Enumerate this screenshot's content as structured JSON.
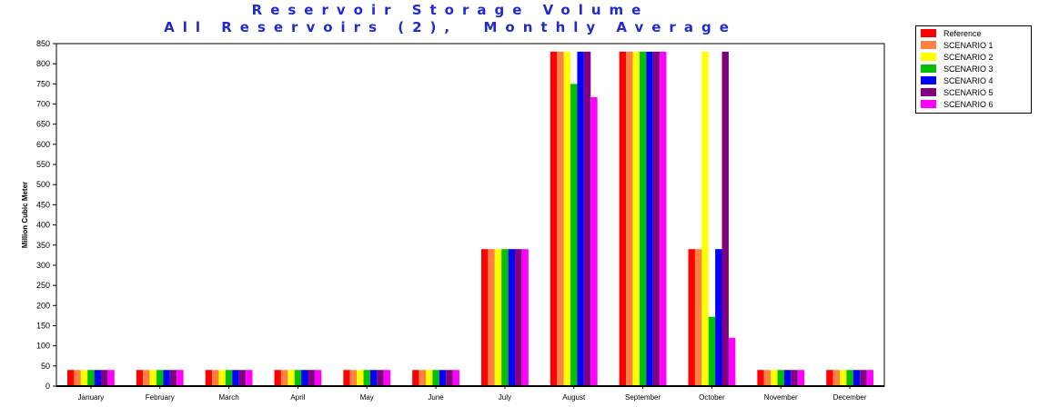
{
  "chart_data": {
    "type": "bar",
    "title": "Reservoir Storage Volume",
    "subtitle": "All Reservoirs (2),  Monthly Average",
    "xlabel": "",
    "ylabel": "Million Cubic Meter",
    "ylim": [
      0,
      850
    ],
    "yticks": [
      0,
      50,
      100,
      150,
      200,
      250,
      300,
      350,
      400,
      450,
      500,
      550,
      600,
      650,
      700,
      750,
      800,
      850
    ],
    "grid": false,
    "legend_position": "top-right outside",
    "categories": [
      "January",
      "February",
      "March",
      "April",
      "May",
      "June",
      "July",
      "August",
      "September",
      "October",
      "November",
      "December"
    ],
    "series": [
      {
        "name": "Reference",
        "color": "#ff0000",
        "values": [
          40,
          40,
          40,
          40,
          40,
          40,
          340,
          830,
          830,
          340,
          40,
          40
        ]
      },
      {
        "name": "SCENARIO 1",
        "color": "#ff8040",
        "values": [
          40,
          40,
          40,
          40,
          40,
          40,
          340,
          830,
          830,
          340,
          40,
          40
        ]
      },
      {
        "name": "SCENARIO 2",
        "color": "#ffff00",
        "values": [
          40,
          40,
          40,
          40,
          40,
          40,
          340,
          830,
          830,
          830,
          40,
          40
        ]
      },
      {
        "name": "SCENARIO 3",
        "color": "#00c000",
        "values": [
          40,
          40,
          40,
          40,
          40,
          40,
          340,
          750,
          830,
          172,
          40,
          40
        ]
      },
      {
        "name": "SCENARIO 4",
        "color": "#0000ff",
        "values": [
          40,
          40,
          40,
          40,
          40,
          40,
          340,
          830,
          830,
          340,
          40,
          40
        ]
      },
      {
        "name": "SCENARIO 5",
        "color": "#800080",
        "values": [
          40,
          40,
          40,
          40,
          40,
          40,
          340,
          830,
          830,
          830,
          40,
          40
        ]
      },
      {
        "name": "SCENARIO 6",
        "color": "#ff00ff",
        "values": [
          40,
          40,
          40,
          40,
          40,
          40,
          340,
          717,
          830,
          120,
          40,
          40
        ]
      }
    ]
  }
}
